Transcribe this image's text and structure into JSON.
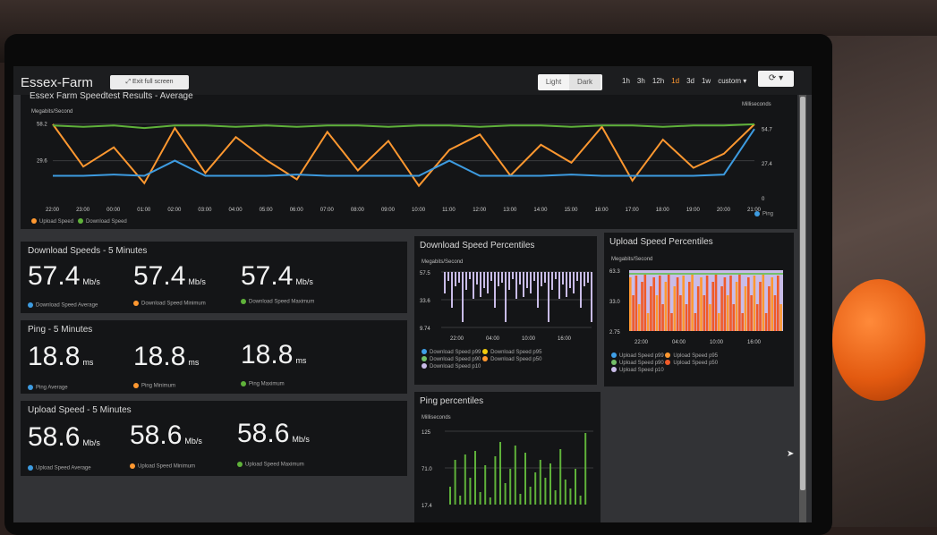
{
  "header": {
    "title": "Essex-Farm",
    "exit_label": "Exit full screen",
    "theme": {
      "light": "Light",
      "dark": "Dark"
    },
    "ranges": [
      "1h",
      "3h",
      "12h",
      "1d",
      "3d",
      "1w",
      "custom ▾"
    ],
    "active_range": "1d",
    "refresh_icon": "refresh-icon"
  },
  "colors": {
    "download": "#5fb23a",
    "upload": "#ff9830",
    "ping": "#3d9be0",
    "p10": "#c9bce8",
    "p25": "#f05a28",
    "p50": "#ff9830",
    "p75": "#73bf69",
    "p90": "#3fa0e8",
    "p95": "#f2cc0c"
  },
  "main": {
    "title": "Essex Farm Speedtest Results - Average",
    "left_unit": "Megabits/Second",
    "right_unit": "Milliseconds",
    "legend_left": [
      "Upload Speed",
      "Download Speed"
    ],
    "legend_right": "Ping"
  },
  "download_panel": {
    "title": "Download Speeds - 5 Minutes",
    "stats": [
      {
        "value": "57.4",
        "unit": "Mb/s",
        "label": "Download Speed Average"
      },
      {
        "value": "57.4",
        "unit": "Mb/s",
        "label": "Download Speed Minimum"
      },
      {
        "value": "57.4",
        "unit": "Mb/s",
        "label": "Download Speed Maximum"
      }
    ]
  },
  "ping_panel": {
    "title": "Ping - 5 Minutes",
    "stats": [
      {
        "value": "18.8",
        "unit": "ms",
        "label": "Ping Average"
      },
      {
        "value": "18.8",
        "unit": "ms",
        "label": "Ping Minimum"
      },
      {
        "value": "18.8",
        "unit": "ms",
        "label": "Ping Maximum"
      }
    ]
  },
  "upload_panel": {
    "title": "Upload Speed - 5 Minutes",
    "stats": [
      {
        "value": "58.6",
        "unit": "Mb/s",
        "label": "Upload Speed Average"
      },
      {
        "value": "58.6",
        "unit": "Mb/s",
        "label": "Upload Speed Minimum"
      },
      {
        "value": "58.6",
        "unit": "Mb/s",
        "label": "Upload Speed Maximum"
      }
    ]
  },
  "dl_pct": {
    "title": "Download Speed Percentiles",
    "unit": "Megabits/Second",
    "legend": [
      "Download Speed p99",
      "Download Speed p95",
      "Download Speed p90",
      "Download Speed p50",
      "Download Speed p10"
    ]
  },
  "ul_pct": {
    "title": "Upload Speed Percentiles",
    "unit": "Megabits/Second",
    "legend": [
      "Upload Speed p99",
      "Upload Speed p95",
      "Upload Speed p90",
      "Upload Speed p50",
      "Upload Speed p10"
    ]
  },
  "ping_pct": {
    "title": "Ping percentiles",
    "unit": "Milliseconds"
  },
  "chart_data": [
    {
      "type": "line",
      "title": "Essex Farm Speedtest Results - Average",
      "x": [
        "22:00",
        "23:00",
        "00:00",
        "01:00",
        "02:00",
        "03:00",
        "04:00",
        "05:00",
        "06:00",
        "07:00",
        "08:00",
        "09:00",
        "10:00",
        "11:00",
        "12:00",
        "13:00",
        "14:00",
        "15:00",
        "16:00",
        "17:00",
        "18:00",
        "19:00",
        "20:00",
        "21:00"
      ],
      "y_ticks_left": [
        "58.2",
        "29.6"
      ],
      "y_ticks_right": [
        "54.7",
        "27.4",
        "0"
      ],
      "series": [
        {
          "name": "Upload Speed",
          "axis": "left",
          "values": [
            58,
            25,
            40,
            12,
            55,
            20,
            48,
            30,
            15,
            52,
            22,
            45,
            10,
            38,
            50,
            18,
            42,
            28,
            56,
            14,
            46,
            24,
            35,
            58
          ]
        },
        {
          "name": "Download Speed",
          "axis": "left",
          "values": [
            57,
            56,
            57,
            55,
            57,
            57,
            56,
            57,
            56,
            57,
            57,
            56,
            57,
            57,
            56,
            57,
            57,
            56,
            57,
            57,
            56,
            57,
            57,
            58
          ]
        },
        {
          "name": "Ping",
          "axis": "right",
          "values": [
            18,
            18,
            19,
            18,
            30,
            18,
            18,
            18,
            19,
            18,
            18,
            18,
            18,
            30,
            18,
            18,
            18,
            19,
            18,
            18,
            18,
            18,
            19,
            55
          ]
        }
      ]
    },
    {
      "type": "line",
      "title": "Download Speed Percentiles",
      "x_ticks": [
        "22:00",
        "04:00",
        "10:00",
        "16:00"
      ],
      "y_ticks": [
        "57.5",
        "33.6",
        "9.74"
      ]
    },
    {
      "type": "area",
      "title": "Upload Speed Percentiles",
      "x_ticks": [
        "22:00",
        "04:00",
        "10:00",
        "16:00"
      ],
      "y_ticks": [
        "63.3",
        "33.0",
        "2.75"
      ]
    },
    {
      "type": "bar",
      "title": "Ping percentiles",
      "y_ticks": [
        "125",
        "71.0",
        "17.4"
      ]
    }
  ]
}
